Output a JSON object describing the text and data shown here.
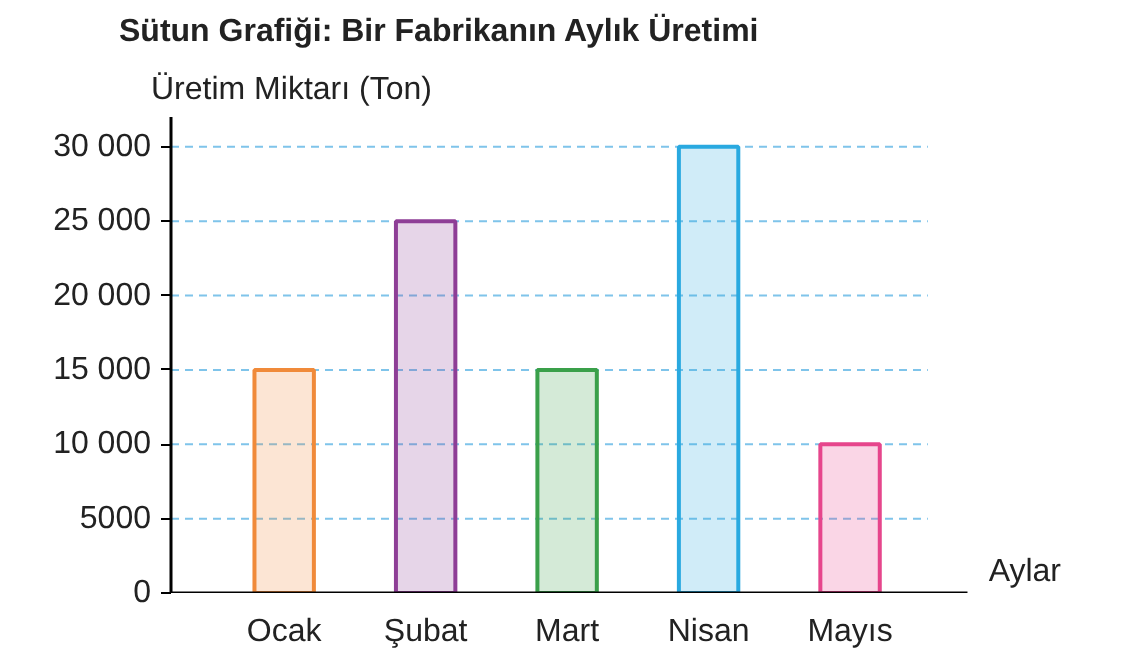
{
  "chart_data": {
    "type": "bar",
    "title": "Sütun Grafiği: Bir Fabrikanın Aylık Üretimi",
    "ylabel": "Üretim Miktarı (Ton)",
    "xlabel": "Aylar",
    "categories": [
      "Ocak",
      "Şubat",
      "Mart",
      "Nisan",
      "Mayıs"
    ],
    "values": [
      15000,
      25000,
      15000,
      30000,
      10000
    ],
    "colors": [
      "#f08a3a",
      "#8e3e96",
      "#3aa04a",
      "#29a9e0",
      "#e6468c"
    ],
    "ylim": [
      0,
      32000
    ],
    "yticks": [
      0,
      5000,
      {
        "value": 10000,
        "label": "10 000"
      },
      {
        "value": 15000,
        "label": "15 000"
      },
      {
        "value": 20000,
        "label": "20 000"
      },
      {
        "value": 25000,
        "label": "25 000"
      },
      {
        "value": 30000,
        "label": "30 000"
      }
    ],
    "grid": "y"
  }
}
